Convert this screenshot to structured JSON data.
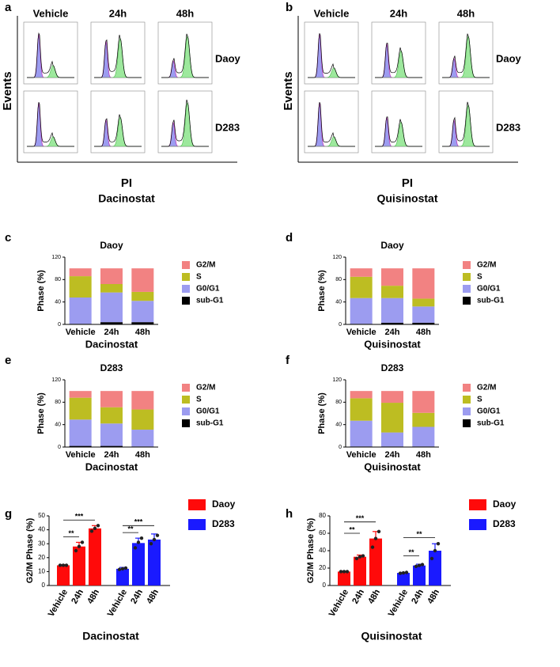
{
  "flow_panels": [
    {
      "letter": "a",
      "columns": [
        "Vehicle",
        "24h",
        "48h"
      ],
      "rows": [
        "Daoy",
        "D283"
      ],
      "y_label": "Events",
      "x_label": "PI",
      "treatment": "Dacinostat"
    },
    {
      "letter": "b",
      "columns": [
        "Vehicle",
        "24h",
        "48h"
      ],
      "rows": [
        "Daoy",
        "D283"
      ],
      "y_label": "Events",
      "x_label": "PI",
      "treatment": "Quisinostat"
    }
  ],
  "chart_data": [
    {
      "type": "stacked_bar",
      "letter": "c",
      "title": "Daoy",
      "x_label": "Dacinostat",
      "y_label": "Phase (%)",
      "categories": [
        "Vehicle",
        "24h",
        "48h"
      ],
      "ylim": [
        0,
        120
      ],
      "yticks": [
        0,
        40,
        80,
        120
      ],
      "series": [
        {
          "name": "sub-G1",
          "color": "#000000",
          "values": [
            1,
            4,
            4
          ]
        },
        {
          "name": "G0/G1",
          "color": "#9c9cf0",
          "values": [
            47,
            53,
            38
          ]
        },
        {
          "name": "S",
          "color": "#bdbd22",
          "values": [
            38,
            15,
            16
          ]
        },
        {
          "name": "G2/M",
          "color": "#f28282",
          "values": [
            14,
            28,
            42
          ]
        }
      ]
    },
    {
      "type": "stacked_bar",
      "letter": "d",
      "title": "Daoy",
      "x_label": "Quisinostat",
      "y_label": "Phase (%)",
      "categories": [
        "Vehicle",
        "24h",
        "48h"
      ],
      "ylim": [
        0,
        120
      ],
      "yticks": [
        0,
        40,
        80,
        120
      ],
      "series": [
        {
          "name": "sub-G1",
          "color": "#000000",
          "values": [
            1,
            3,
            3
          ]
        },
        {
          "name": "G0/G1",
          "color": "#9c9cf0",
          "values": [
            46,
            44,
            29
          ]
        },
        {
          "name": "S",
          "color": "#bdbd22",
          "values": [
            38,
            22,
            14
          ]
        },
        {
          "name": "G2/M",
          "color": "#f28282",
          "values": [
            15,
            31,
            54
          ]
        }
      ]
    },
    {
      "type": "stacked_bar",
      "letter": "e",
      "title": "D283",
      "x_label": "Dacinostat",
      "y_label": "Phase (%)",
      "categories": [
        "Vehicle",
        "24h",
        "48h"
      ],
      "ylim": [
        0,
        120
      ],
      "yticks": [
        0,
        40,
        80,
        120
      ],
      "series": [
        {
          "name": "sub-G1",
          "color": "#000000",
          "values": [
            2,
            2,
            1
          ]
        },
        {
          "name": "G0/G1",
          "color": "#9c9cf0",
          "values": [
            47,
            40,
            30
          ]
        },
        {
          "name": "S",
          "color": "#bdbd22",
          "values": [
            39,
            29,
            36
          ]
        },
        {
          "name": "G2/M",
          "color": "#f28282",
          "values": [
            12,
            29,
            33
          ]
        }
      ]
    },
    {
      "type": "stacked_bar",
      "letter": "f",
      "title": "D283",
      "x_label": "Quisinostat",
      "y_label": "Phase (%)",
      "categories": [
        "Vehicle",
        "24h",
        "48h"
      ],
      "ylim": [
        0,
        120
      ],
      "yticks": [
        0,
        40,
        80,
        120
      ],
      "series": [
        {
          "name": "sub-G1",
          "color": "#000000",
          "values": [
            1,
            1,
            1
          ]
        },
        {
          "name": "G0/G1",
          "color": "#9c9cf0",
          "values": [
            46,
            25,
            35
          ]
        },
        {
          "name": "S",
          "color": "#bdbd22",
          "values": [
            40,
            53,
            25
          ]
        },
        {
          "name": "G2/M",
          "color": "#f28282",
          "values": [
            13,
            21,
            39
          ]
        }
      ]
    },
    {
      "type": "grouped_bar",
      "letter": "g",
      "x_label": "Dacinostat",
      "y_label": "G2/M Phase (%)",
      "categories": [
        "Vehicle",
        "24h",
        "48h"
      ],
      "ylim": [
        0,
        50
      ],
      "yticks": [
        0,
        10,
        20,
        30,
        40,
        50
      ],
      "series": [
        {
          "name": "Daoy",
          "color": "#ff0a0a",
          "values": [
            14.5,
            28,
            41
          ],
          "errors": [
            0.5,
            3,
            2
          ],
          "points": [
            [
              14.5,
              14.5,
              14.5
            ],
            [
              25,
              28,
              31
            ],
            [
              39,
              41,
              43
            ]
          ],
          "annotations": [
            {
              "text": "**",
              "y": 35
            },
            {
              "text": "***",
              "y": 47
            }
          ]
        },
        {
          "name": "D283",
          "color": "#1a1aff",
          "values": [
            12,
            30.5,
            33
          ],
          "errors": [
            1,
            3.5,
            4
          ],
          "points": [
            [
              11.5,
              12,
              12.5
            ],
            [
              27,
              31,
              34
            ],
            [
              30,
              33,
              36
            ]
          ],
          "annotations": [
            {
              "text": "**",
              "y": 38
            },
            {
              "text": "***",
              "y": 43
            }
          ]
        }
      ]
    },
    {
      "type": "grouped_bar",
      "letter": "h",
      "x_label": "Quisinostat",
      "y_label": "G2/M Phase (%)",
      "categories": [
        "Vehicle",
        "24h",
        "48h"
      ],
      "ylim": [
        0,
        80
      ],
      "yticks": [
        0,
        20,
        40,
        60,
        80
      ],
      "series": [
        {
          "name": "Daoy",
          "color": "#ff0a0a",
          "values": [
            16,
            33,
            54
          ],
          "errors": [
            0.5,
            2,
            8
          ],
          "points": [
            [
              16,
              16,
              16
            ],
            [
              31,
              33,
              34
            ],
            [
              44,
              54,
              62
            ]
          ],
          "annotations": [
            {
              "text": "**",
              "y": 60
            },
            {
              "text": "***",
              "y": 73
            }
          ]
        },
        {
          "name": "D283",
          "color": "#1a1aff",
          "values": [
            14.5,
            23,
            40
          ],
          "errors": [
            0.5,
            1.5,
            8
          ],
          "points": [
            [
              14,
              14.5,
              15
            ],
            [
              22,
              23,
              24
            ],
            [
              31,
              40,
              48
            ]
          ],
          "annotations": [
            {
              "text": "**",
              "y": 34
            },
            {
              "text": "**",
              "y": 55
            }
          ]
        }
      ]
    }
  ]
}
